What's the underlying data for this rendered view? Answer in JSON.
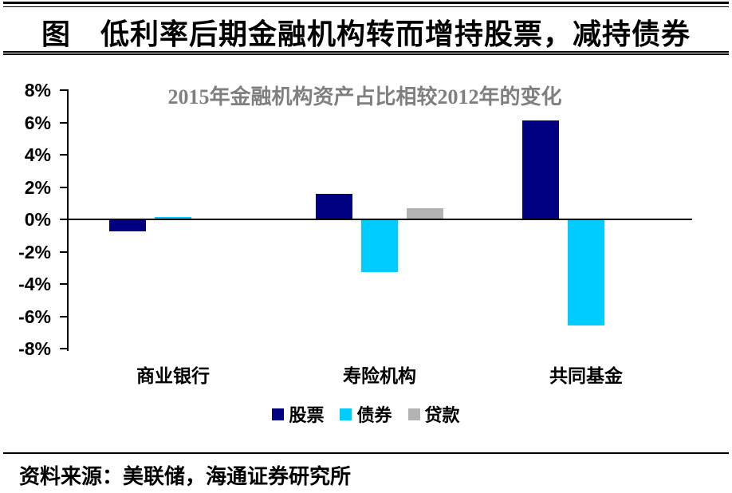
{
  "page": {
    "title": "图　低利率后期金融机构转而增持股票，减持债券",
    "source": "资料来源：美联储，海通证券研究所"
  },
  "chart_data": {
    "type": "bar",
    "title": "2015年金融机构资产占比相较2012年的变化",
    "title_color": "#7F7F7F",
    "categories": [
      "商业银行",
      "寿险机构",
      "共同基金"
    ],
    "series": [
      {
        "name": "股票",
        "color": "#000080",
        "values": [
          -0.7,
          1.6,
          6.1
        ]
      },
      {
        "name": "债券",
        "color": "#00CCFF",
        "values": [
          0.15,
          -3.2,
          -6.5
        ]
      },
      {
        "name": "贷款",
        "color": "#B3B3B3",
        "values": [
          0,
          0.7,
          0
        ]
      }
    ],
    "xlabel": "",
    "ylabel": "",
    "ylim": [
      -8,
      8
    ],
    "ytick_step": 2,
    "ytick_labels": [
      "8%",
      "6%",
      "4%",
      "2%",
      "0%",
      "-2%",
      "-4%",
      "-6%",
      "-8%"
    ],
    "unit": "percent",
    "grid": false,
    "legend_position": "bottom",
    "axis_color": "#000000"
  }
}
